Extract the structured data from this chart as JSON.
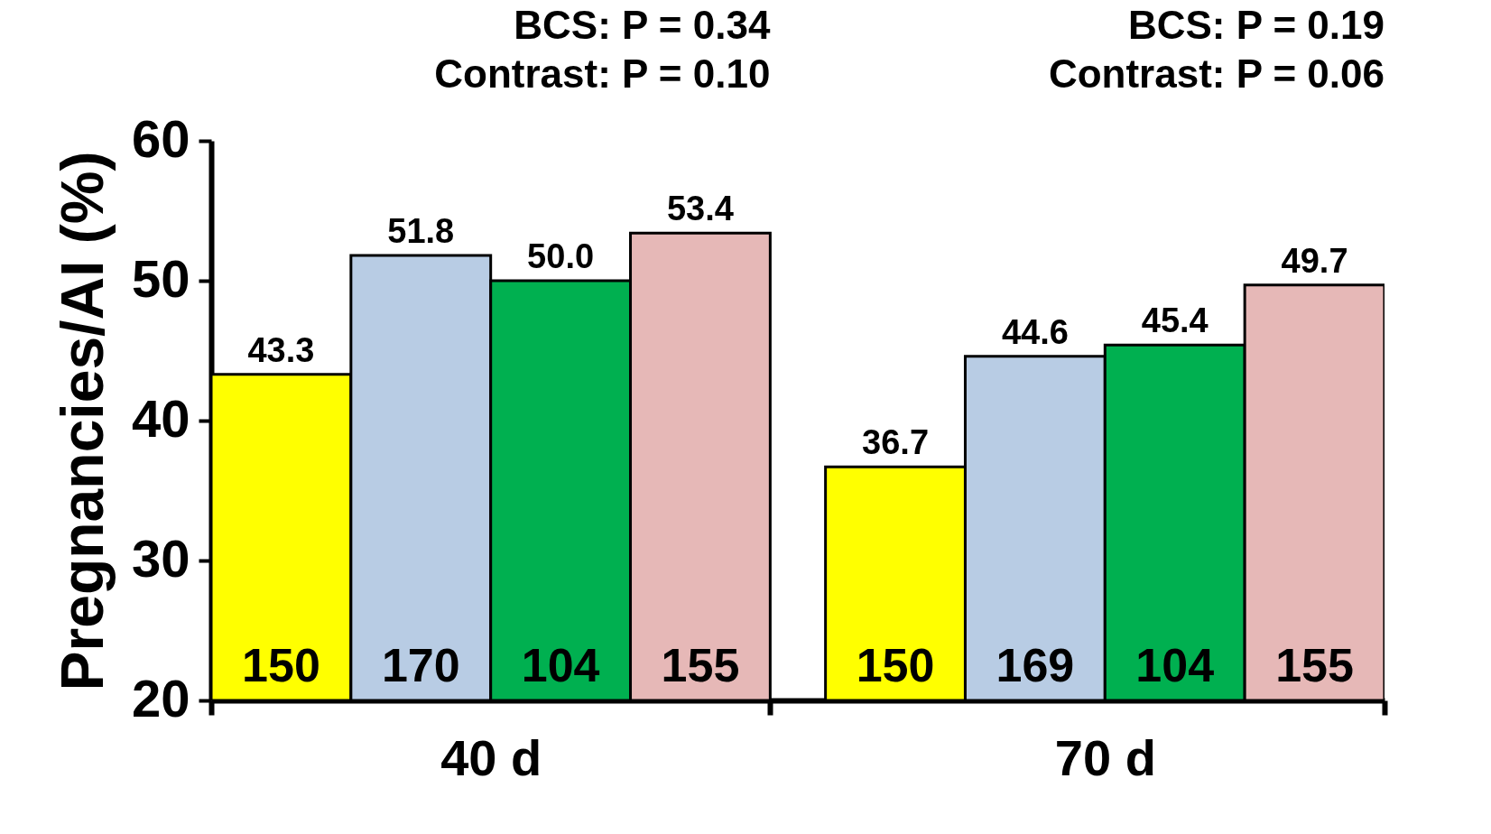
{
  "chart_data": {
    "type": "bar",
    "ylabel": "Pregnancies/AI (%)",
    "categories": [
      "40 d",
      "70 d"
    ],
    "series": [
      {
        "color": "#ffff00",
        "values": [
          43.3,
          36.7
        ],
        "value_labels": [
          "43.3",
          "36.7"
        ]
      },
      {
        "color": "#b8cce4",
        "values": [
          51.8,
          44.6
        ],
        "value_labels": [
          "51.8",
          "44.6"
        ]
      },
      {
        "color": "#00b050",
        "values": [
          50.0,
          45.4
        ],
        "value_labels": [
          "50.0",
          "45.4"
        ]
      },
      {
        "color": "#e6b8b7",
        "values": [
          53.4,
          49.7
        ],
        "value_labels": [
          "53.4",
          "49.7"
        ]
      }
    ],
    "ylim": [
      20,
      60
    ],
    "yticks": [
      20,
      30,
      40,
      50,
      60
    ],
    "grid": false,
    "legend": false,
    "annotations": [
      "BCS: P = 0.34",
      "Contrast: P = 0.10",
      "BCS: P = 0.19",
      "Contrast: P = 0.06",
      "150",
      "170",
      "104",
      "155",
      "150",
      "169",
      "104",
      "155"
    ]
  }
}
